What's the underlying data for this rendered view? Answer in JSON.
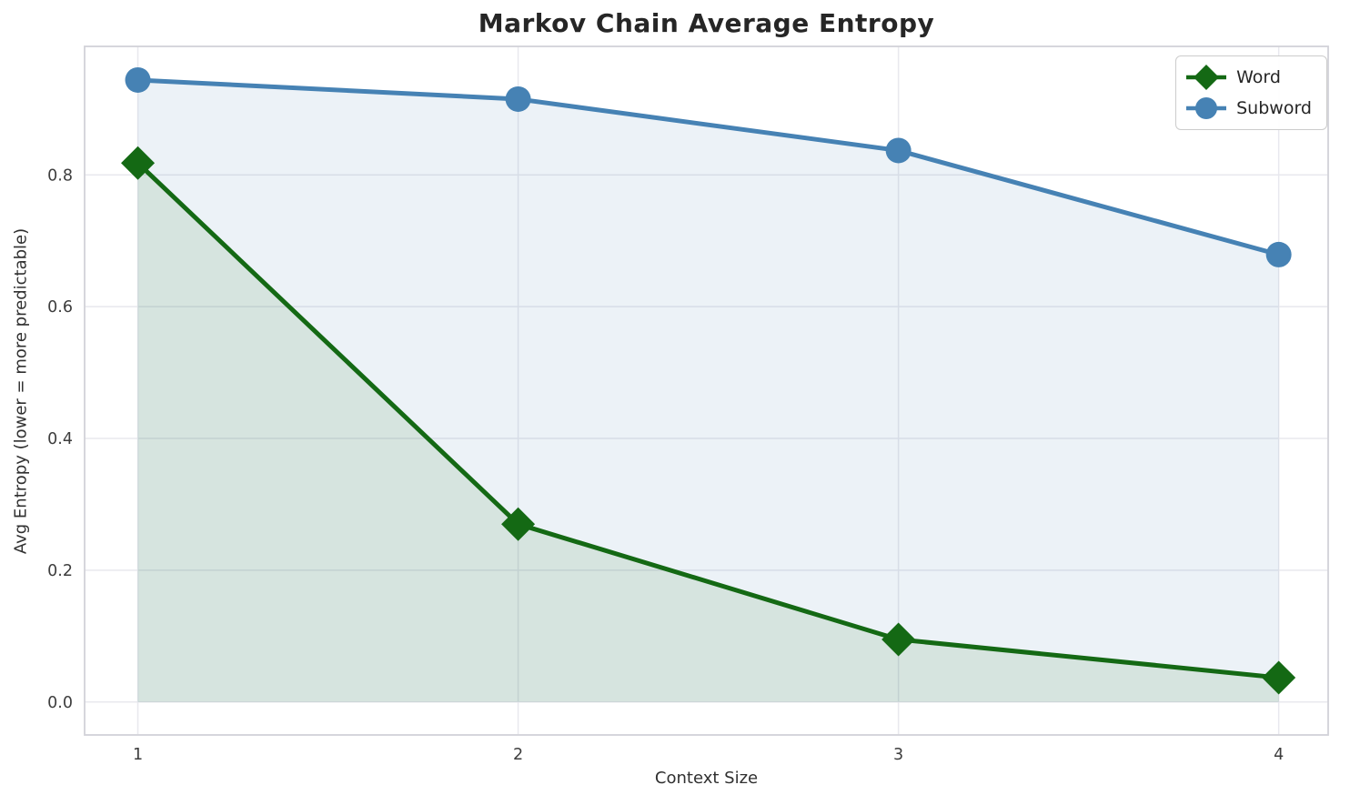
{
  "chart": {
    "title": "Markov Chain Average Entropy",
    "xlabel": "Context Size",
    "ylabel": "Avg Entropy (lower = more predictable)"
  },
  "chart_data": {
    "type": "line",
    "title": "Markov Chain Average Entropy",
    "xlabel": "Context Size",
    "ylabel": "Avg Entropy (lower = more predictable)",
    "x": [
      1,
      2,
      3,
      4
    ],
    "series": [
      {
        "name": "Word",
        "values": [
          0.818,
          0.27,
          0.095,
          0.037
        ],
        "color": "#146914",
        "marker": "diamond",
        "fill_alpha": 0.1
      },
      {
        "name": "Subword",
        "values": [
          0.944,
          0.915,
          0.837,
          0.679
        ],
        "color": "#4682b4",
        "marker": "circle",
        "fill_alpha": 0.1
      }
    ],
    "area_fill_baseline": 0.0,
    "x_ticks": [
      "1",
      "2",
      "3",
      "4"
    ],
    "x_tick_values": [
      1,
      2,
      3,
      4
    ],
    "y_ticks": [
      "0.0",
      "0.2",
      "0.4",
      "0.6",
      "0.8"
    ],
    "y_tick_values": [
      0.0,
      0.2,
      0.4,
      0.6,
      0.8
    ],
    "xlim": [
      0.86,
      4.13
    ],
    "ylim": [
      -0.05,
      0.995
    ],
    "grid": true,
    "legend_position": "upper right",
    "legend_labels": [
      "Word",
      "Subword"
    ]
  },
  "style": {
    "background_color": "#ffffff",
    "grid_color": "#e8e8ee",
    "spine_color": "#d2d2d8",
    "tick_label_color": "#3d3d3d",
    "title_color": "#262626",
    "word_green": "#146914",
    "subword_blue": "#4682b4"
  }
}
